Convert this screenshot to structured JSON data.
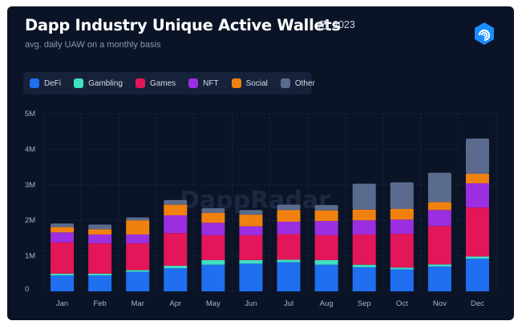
{
  "header": {
    "title": "Dapp Industry Unique Active Wallets",
    "year": "2023",
    "subtitle": "avg. daily UAW on a monthly basis",
    "calendar_icon": "calendar-icon",
    "logo_icon": "dappradar-logo-icon"
  },
  "watermark": "DappRadar",
  "colors": {
    "background": "#0b1426",
    "DeFi": "#1f6ff0",
    "Gambling": "#3ee0c0",
    "Games": "#e21658",
    "NFT": "#9b2ee0",
    "Social": "#f0810f",
    "Other": "#5a6b8e"
  },
  "chart_data": {
    "type": "bar",
    "stacked": true,
    "title": "Dapp Industry Unique Active Wallets",
    "subtitle": "avg. daily UAW on a monthly basis",
    "categories": [
      "Jan",
      "Feb",
      "Mar",
      "Apr",
      "May",
      "Jun",
      "Jul",
      "Aug",
      "Sep",
      "Oct",
      "Nov",
      "Dec"
    ],
    "y_ticks": [
      "0",
      "1M",
      "2M",
      "3M",
      "4M",
      "5M"
    ],
    "ylim": [
      0,
      5000000
    ],
    "series": [
      {
        "name": "DeFi",
        "values": [
          450000,
          450000,
          550000,
          650000,
          750000,
          780000,
          820000,
          750000,
          680000,
          620000,
          700000,
          920000
        ]
      },
      {
        "name": "Gambling",
        "values": [
          50000,
          50000,
          50000,
          70000,
          130000,
          100000,
          70000,
          130000,
          70000,
          50000,
          60000,
          60000
        ]
      },
      {
        "name": "Games",
        "values": [
          880000,
          850000,
          750000,
          920000,
          700000,
          700000,
          720000,
          700000,
          850000,
          950000,
          1080000,
          1380000
        ]
      },
      {
        "name": "NFT",
        "values": [
          280000,
          250000,
          250000,
          500000,
          350000,
          250000,
          350000,
          400000,
          400000,
          400000,
          450000,
          680000
        ]
      },
      {
        "name": "Social",
        "values": [
          150000,
          150000,
          400000,
          300000,
          280000,
          330000,
          330000,
          300000,
          300000,
          300000,
          220000,
          270000
        ]
      },
      {
        "name": "Other",
        "values": [
          100000,
          130000,
          80000,
          130000,
          130000,
          130000,
          150000,
          150000,
          730000,
          750000,
          830000,
          990000
        ]
      }
    ],
    "legend_position": "top-left",
    "grid": true
  }
}
